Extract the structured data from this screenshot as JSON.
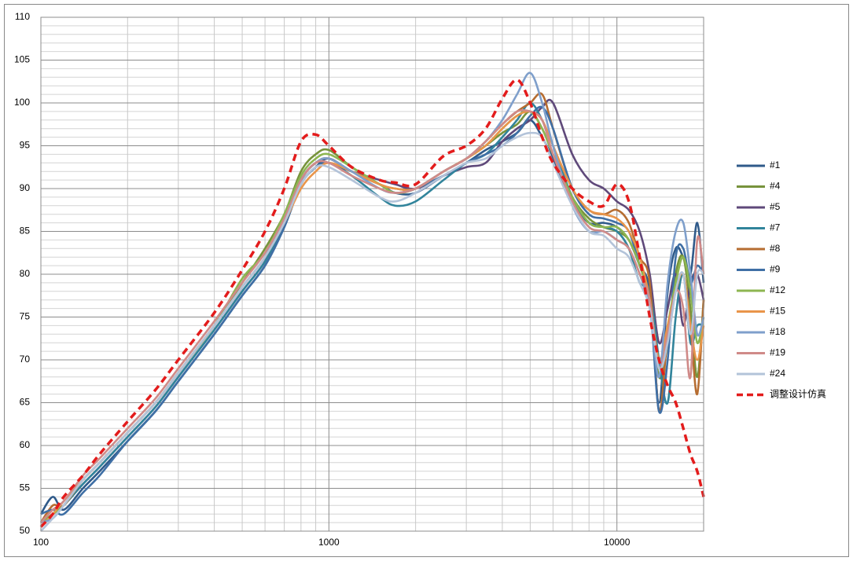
{
  "chart_data": {
    "type": "line",
    "xscale": "log",
    "grid": true,
    "xlim": [
      100,
      20000
    ],
    "ylim": [
      50,
      110
    ],
    "xticks": [
      100,
      1000,
      10000
    ],
    "yticks": [
      50,
      55,
      60,
      65,
      70,
      75,
      80,
      85,
      90,
      95,
      100,
      105,
      110
    ],
    "xminorticks": [
      200,
      300,
      400,
      500,
      600,
      700,
      800,
      900,
      2000,
      3000,
      4000,
      5000,
      6000,
      7000,
      8000,
      9000,
      20000
    ],
    "yminorticks": [
      51,
      52,
      53,
      54,
      56,
      57,
      58,
      59,
      61,
      62,
      63,
      64,
      66,
      67,
      68,
      69,
      71,
      72,
      73,
      74,
      76,
      77,
      78,
      79,
      81,
      82,
      83,
      84,
      86,
      87,
      88,
      89,
      91,
      92,
      93,
      94,
      96,
      97,
      98,
      99,
      101,
      102,
      103,
      104,
      106,
      107,
      108,
      109
    ],
    "legend": "right",
    "x": [
      100,
      110,
      120,
      140,
      160,
      200,
      250,
      300,
      400,
      500,
      600,
      700,
      800,
      900,
      1000,
      1200,
      1500,
      1700,
      2000,
      2500,
      3000,
      3500,
      4000,
      4500,
      5000,
      5500,
      6000,
      7000,
      8000,
      9000,
      10000,
      11000,
      12000,
      13000,
      14000,
      15000,
      16000,
      17000,
      18000,
      19000,
      20000
    ],
    "series": [
      {
        "name": "#1",
        "color": "#2f5a8a",
        "values": [
          52,
          54,
          52.5,
          55,
          57,
          60.5,
          64,
          67.5,
          73,
          77.5,
          81,
          85.5,
          90.5,
          92.5,
          93.5,
          92,
          90.5,
          89.5,
          89.5,
          91.5,
          93,
          94.5,
          95.5,
          96.5,
          98,
          96,
          93.5,
          88.5,
          86,
          86,
          85.5,
          84,
          81,
          78,
          65,
          78,
          83,
          82,
          80,
          86,
          79
        ]
      },
      {
        "name": "#4",
        "color": "#77933c",
        "values": [
          51,
          52.5,
          53,
          56,
          58,
          61.5,
          65,
          68.5,
          74,
          79,
          83,
          87,
          92,
          94,
          94.5,
          92.5,
          90.5,
          89.5,
          90,
          92,
          93.5,
          95,
          96.5,
          97.5,
          99,
          97,
          94,
          89,
          86.5,
          85.5,
          85,
          84,
          81,
          77,
          68,
          72,
          80,
          82,
          76,
          68,
          77
        ]
      },
      {
        "name": "#5",
        "color": "#5f497a",
        "values": [
          51,
          52,
          53,
          55.5,
          57.5,
          61,
          64.5,
          68,
          73.5,
          78,
          81.5,
          86,
          91,
          93,
          93,
          92,
          91,
          90.5,
          90,
          91.5,
          92.5,
          93,
          95.5,
          97,
          98,
          99.5,
          100,
          94,
          91,
          90,
          88.5,
          87.5,
          85,
          80,
          72,
          76,
          80,
          74,
          79,
          80,
          77
        ]
      },
      {
        "name": "#7",
        "color": "#31849b",
        "values": [
          51,
          52,
          53,
          55.5,
          57.5,
          61,
          64.5,
          68,
          73.5,
          78,
          81.5,
          86,
          90.5,
          92.5,
          93,
          91.5,
          89,
          88,
          88.5,
          91,
          93,
          94,
          96,
          98,
          100,
          98,
          95,
          89,
          86,
          85.5,
          85,
          83,
          79,
          78,
          70,
          65,
          75,
          80,
          72,
          74,
          74
        ]
      },
      {
        "name": "#8",
        "color": "#b66d31",
        "values": [
          51,
          53,
          53,
          56,
          58,
          61.5,
          65,
          68.5,
          74,
          78.5,
          82,
          86.5,
          91,
          93,
          93.5,
          92,
          90.5,
          90,
          90,
          92,
          93.5,
          95.5,
          97.5,
          99,
          100,
          101,
          97,
          90,
          87.5,
          87,
          87.5,
          86,
          82,
          79,
          64,
          73,
          78,
          80,
          74,
          66,
          77
        ]
      },
      {
        "name": "#9",
        "color": "#3f6fa5",
        "values": [
          52,
          52.5,
          52,
          54.5,
          56.5,
          60.5,
          64,
          67.5,
          73,
          77.5,
          81,
          85.5,
          90.5,
          92.5,
          93,
          92,
          90.5,
          89.5,
          90,
          91.5,
          93,
          94,
          95,
          96.5,
          98.5,
          99.5,
          97,
          90,
          87,
          86.5,
          86,
          85,
          81,
          77,
          64,
          70,
          82,
          83,
          79,
          81,
          80
        ]
      },
      {
        "name": "#12",
        "color": "#8db651",
        "values": [
          51,
          52,
          53,
          56,
          58,
          61.5,
          65,
          68.5,
          74,
          79.5,
          82.5,
          87,
          91.5,
          93.5,
          94,
          92.5,
          90.5,
          89.5,
          90,
          92,
          93.5,
          95,
          97,
          98.5,
          99,
          97,
          94,
          89,
          86,
          85.5,
          85.5,
          84,
          81,
          77,
          69,
          74,
          79,
          82,
          78,
          72,
          75
        ]
      },
      {
        "name": "#15",
        "color": "#e9954a",
        "values": [
          50.5,
          52,
          53.5,
          56,
          58,
          61.5,
          65,
          68.5,
          74,
          78.5,
          82,
          86,
          90,
          92,
          93,
          92,
          90.5,
          90,
          90,
          92,
          93.5,
          95,
          97,
          98.5,
          99,
          98,
          95,
          90,
          87.5,
          87,
          86.5,
          85,
          82,
          77,
          70,
          74,
          78,
          80,
          74,
          70,
          74
        ]
      },
      {
        "name": "#18",
        "color": "#7f9fcb",
        "values": [
          51,
          51.5,
          53,
          56,
          58,
          61.5,
          65,
          68.5,
          74,
          78.5,
          82,
          86.5,
          91,
          93,
          93.5,
          92,
          90,
          89.5,
          90,
          92,
          93.5,
          95.5,
          98,
          101,
          103.5,
          100,
          95,
          88,
          85,
          85,
          84,
          83,
          80,
          76,
          68,
          79,
          85,
          86,
          80,
          73,
          75
        ]
      },
      {
        "name": "#19",
        "color": "#d08a88",
        "values": [
          51,
          52.5,
          53.5,
          56.5,
          58.5,
          62,
          65.5,
          69,
          74.5,
          79,
          82.5,
          86.5,
          91,
          93,
          93,
          91.5,
          90,
          89.5,
          90,
          92,
          93.5,
          95.5,
          97.5,
          99,
          99,
          98,
          94,
          88.5,
          85.5,
          85,
          84,
          83,
          80,
          77,
          69,
          73,
          78,
          76,
          68,
          84,
          80
        ]
      },
      {
        "name": "#24",
        "color": "#b3c3d9",
        "values": [
          50,
          51.5,
          53,
          56,
          58,
          61.5,
          65,
          68.5,
          74,
          78.5,
          82,
          86,
          90.5,
          92.5,
          92.5,
          91,
          89,
          88.5,
          89.5,
          91.5,
          93,
          93.5,
          95,
          96,
          96.5,
          96,
          93,
          88,
          85,
          84.5,
          83,
          82,
          79,
          76,
          69,
          72,
          78,
          80,
          73,
          80,
          80
        ]
      },
      {
        "name": "调整设计仿真",
        "color": "#e31c1c",
        "dashed": true,
        "values": [
          50.5,
          52,
          54,
          56.5,
          59,
          62.8,
          66.5,
          70,
          75.5,
          80.5,
          85,
          90,
          95.5,
          96.3,
          95,
          92.5,
          91,
          90.7,
          90.5,
          93.8,
          95,
          97,
          100.5,
          102.7,
          100,
          96,
          93,
          90,
          88.5,
          88,
          90.5,
          88.5,
          82,
          75,
          70,
          67,
          65,
          62,
          59,
          57,
          54
        ]
      }
    ]
  }
}
